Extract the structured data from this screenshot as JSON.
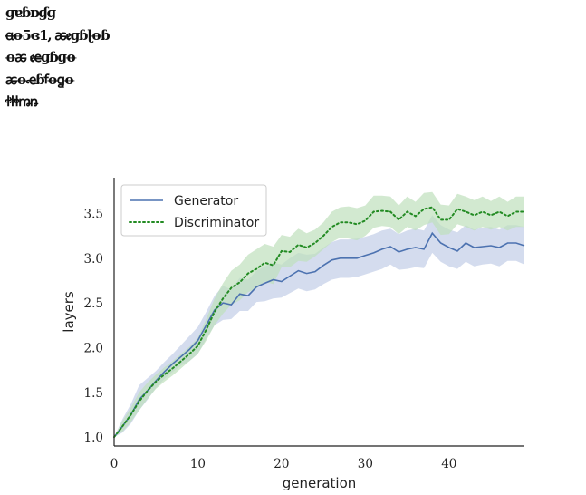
{
  "overlay_text": [
    "ɡɐɓɒɠɡ",
    "ꬰꝋ5ɞ1, ꬱꬲɡɓɭꝋɓ",
    "ꝋꬱ ꬲꬳɡɓɡꝋ",
    "ꬱꝋꬴɓꬵꝋꬶꝋ",
    "ꬷꬸꬹꬺꬻ"
  ],
  "chart_data": {
    "type": "line",
    "title": "",
    "xlabel": "generation",
    "ylabel": "layers",
    "xlim": [
      0,
      49
    ],
    "ylim": [
      0.9,
      3.9
    ],
    "xticks": [
      0,
      10,
      20,
      30,
      40
    ],
    "yticks": [
      1.0,
      1.5,
      2.0,
      2.5,
      3.0,
      3.5
    ],
    "ytick_labels": [
      "1.0",
      "1.5",
      "2.0",
      "2.5",
      "3.0",
      "3.5"
    ],
    "legend_position": "top-left",
    "x": [
      0,
      1,
      2,
      3,
      4,
      5,
      6,
      7,
      8,
      9,
      10,
      11,
      12,
      13,
      14,
      15,
      16,
      17,
      18,
      19,
      20,
      21,
      22,
      23,
      24,
      25,
      26,
      27,
      28,
      29,
      30,
      31,
      32,
      33,
      34,
      35,
      36,
      37,
      38,
      39,
      40,
      41,
      42,
      43,
      44,
      45,
      46,
      47,
      48,
      49
    ],
    "series": [
      {
        "name": "Generator",
        "style": "solid",
        "color": "#4c72b0",
        "band_color": "#c5d0e8",
        "values": [
          1.0,
          1.12,
          1.25,
          1.42,
          1.52,
          1.63,
          1.73,
          1.82,
          1.9,
          1.98,
          2.08,
          2.25,
          2.42,
          2.5,
          2.48,
          2.6,
          2.58,
          2.68,
          2.72,
          2.76,
          2.74,
          2.8,
          2.86,
          2.83,
          2.85,
          2.92,
          2.98,
          3.0,
          3.0,
          3.0,
          3.03,
          3.06,
          3.1,
          3.13,
          3.07,
          3.1,
          3.12,
          3.1,
          3.28,
          3.17,
          3.12,
          3.08,
          3.17,
          3.12,
          3.13,
          3.14,
          3.12,
          3.17,
          3.17,
          3.14
        ],
        "lower": [
          1.0,
          1.05,
          1.15,
          1.3,
          1.42,
          1.55,
          1.65,
          1.73,
          1.8,
          1.85,
          1.93,
          2.1,
          2.25,
          2.31,
          2.32,
          2.41,
          2.41,
          2.51,
          2.52,
          2.55,
          2.56,
          2.61,
          2.66,
          2.63,
          2.65,
          2.71,
          2.76,
          2.78,
          2.78,
          2.79,
          2.82,
          2.85,
          2.88,
          2.93,
          2.87,
          2.88,
          2.9,
          2.89,
          3.06,
          2.96,
          2.91,
          2.88,
          2.96,
          2.91,
          2.93,
          2.94,
          2.91,
          2.97,
          2.97,
          2.93
        ],
        "upper": [
          1.0,
          1.2,
          1.37,
          1.58,
          1.66,
          1.74,
          1.84,
          1.93,
          2.03,
          2.13,
          2.23,
          2.4,
          2.58,
          2.69,
          2.65,
          2.78,
          2.76,
          2.86,
          2.91,
          2.95,
          2.93,
          3.0,
          3.06,
          3.04,
          3.05,
          3.12,
          3.18,
          3.21,
          3.21,
          3.22,
          3.24,
          3.27,
          3.31,
          3.33,
          3.27,
          3.31,
          3.33,
          3.31,
          3.48,
          3.37,
          3.32,
          3.29,
          3.37,
          3.32,
          3.34,
          3.35,
          3.32,
          3.37,
          3.37,
          3.35
        ]
      },
      {
        "name": "Discriminator",
        "style": "dotted",
        "color": "#238b23",
        "band_color": "#bfe0bc",
        "values": [
          1.0,
          1.12,
          1.25,
          1.4,
          1.52,
          1.62,
          1.7,
          1.77,
          1.85,
          1.93,
          2.02,
          2.2,
          2.4,
          2.55,
          2.67,
          2.73,
          2.83,
          2.88,
          2.95,
          2.92,
          3.08,
          3.07,
          3.15,
          3.12,
          3.17,
          3.25,
          3.35,
          3.4,
          3.4,
          3.38,
          3.42,
          3.52,
          3.53,
          3.52,
          3.43,
          3.52,
          3.47,
          3.55,
          3.57,
          3.43,
          3.43,
          3.55,
          3.52,
          3.48,
          3.52,
          3.48,
          3.52,
          3.47,
          3.52,
          3.52
        ],
        "lower": [
          1.0,
          1.06,
          1.17,
          1.3,
          1.43,
          1.54,
          1.62,
          1.69,
          1.77,
          1.85,
          1.93,
          2.08,
          2.25,
          2.38,
          2.48,
          2.53,
          2.62,
          2.66,
          2.74,
          2.71,
          2.9,
          2.9,
          2.97,
          2.96,
          3.02,
          3.1,
          3.18,
          3.23,
          3.22,
          3.2,
          3.25,
          3.34,
          3.36,
          3.35,
          3.27,
          3.35,
          3.31,
          3.37,
          3.4,
          3.26,
          3.27,
          3.38,
          3.35,
          3.31,
          3.35,
          3.32,
          3.35,
          3.31,
          3.35,
          3.35
        ],
        "upper": [
          1.0,
          1.18,
          1.33,
          1.5,
          1.61,
          1.7,
          1.78,
          1.85,
          1.93,
          2.01,
          2.11,
          2.32,
          2.55,
          2.72,
          2.86,
          2.93,
          3.04,
          3.1,
          3.16,
          3.13,
          3.26,
          3.24,
          3.33,
          3.28,
          3.32,
          3.4,
          3.52,
          3.57,
          3.58,
          3.56,
          3.59,
          3.7,
          3.7,
          3.69,
          3.59,
          3.69,
          3.63,
          3.73,
          3.74,
          3.6,
          3.59,
          3.72,
          3.69,
          3.65,
          3.69,
          3.64,
          3.69,
          3.63,
          3.69,
          3.69
        ]
      }
    ]
  }
}
